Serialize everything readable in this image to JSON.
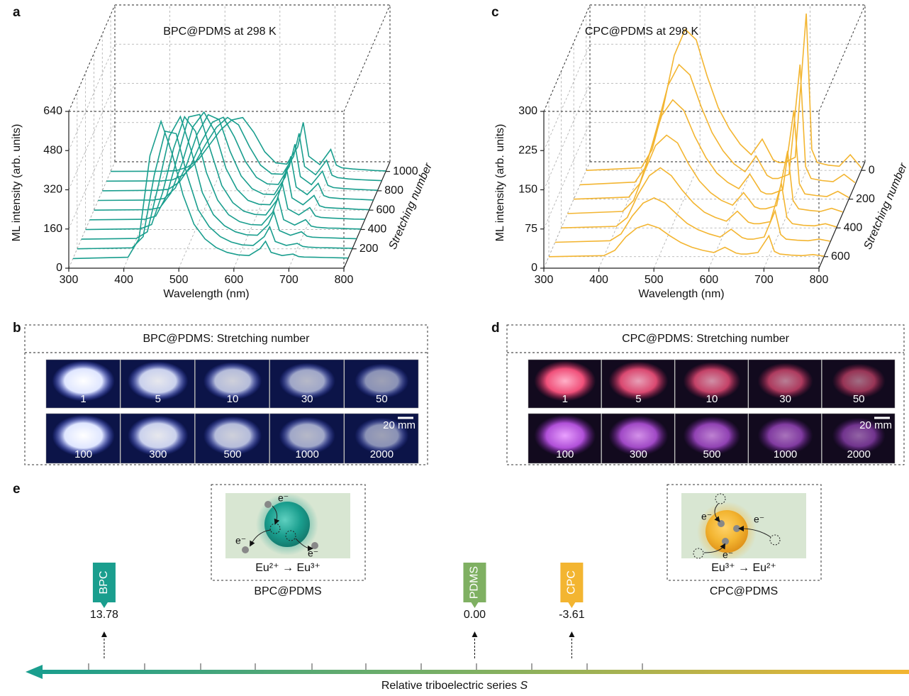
{
  "chart_data": [
    {
      "type": "waterfall",
      "panel_label": "a",
      "title": "BPC@PDMS at 298 K",
      "xlabel": "Wavelength (nm)",
      "ylabel": "ML intensity (arb. units)",
      "zlabel": "Stretching number",
      "color": "#1a9e8e",
      "grid": true,
      "xlim": [
        300,
        800
      ],
      "xticks": [
        300,
        400,
        500,
        600,
        700,
        800
      ],
      "ylim": [
        0,
        640
      ],
      "yticks": [
        0,
        160,
        320,
        480,
        640
      ],
      "zlim": [
        0,
        1100
      ],
      "zticks": [
        200,
        400,
        600,
        800,
        1000
      ],
      "x": [
        300,
        400,
        420,
        440,
        460,
        480,
        500,
        520,
        540,
        560,
        580,
        600,
        620,
        640,
        650,
        660,
        680,
        700,
        710,
        720,
        740,
        760,
        780,
        800
      ],
      "series": [
        {
          "z": 100,
          "values": [
            0,
            5,
            80,
            420,
            560,
            430,
            260,
            140,
            80,
            45,
            25,
            15,
            12,
            40,
            70,
            25,
            12,
            18,
            8,
            6,
            5,
            4,
            3,
            2
          ]
        },
        {
          "z": 200,
          "values": [
            0,
            4,
            50,
            300,
            480,
            470,
            300,
            160,
            90,
            50,
            28,
            16,
            14,
            50,
            90,
            30,
            14,
            22,
            10,
            7,
            5,
            4,
            3,
            2
          ]
        },
        {
          "z": 300,
          "values": [
            0,
            3,
            30,
            220,
            420,
            500,
            360,
            190,
            100,
            55,
            30,
            18,
            16,
            60,
            110,
            35,
            16,
            30,
            12,
            8,
            6,
            5,
            3,
            2
          ]
        },
        {
          "z": 400,
          "values": [
            0,
            3,
            20,
            150,
            330,
            460,
            400,
            230,
            120,
            60,
            32,
            20,
            18,
            70,
            130,
            40,
            18,
            40,
            14,
            9,
            6,
            5,
            3,
            2
          ]
        },
        {
          "z": 500,
          "values": [
            0,
            2,
            15,
            100,
            260,
            420,
            430,
            280,
            140,
            70,
            35,
            22,
            20,
            80,
            150,
            45,
            20,
            50,
            16,
            10,
            7,
            5,
            3,
            2
          ]
        },
        {
          "z": 600,
          "values": [
            0,
            2,
            10,
            70,
            190,
            340,
            400,
            320,
            170,
            85,
            40,
            24,
            22,
            90,
            170,
            50,
            22,
            60,
            18,
            11,
            8,
            6,
            3,
            2
          ]
        },
        {
          "z": 700,
          "values": [
            0,
            2,
            8,
            50,
            140,
            270,
            350,
            330,
            200,
            100,
            48,
            26,
            24,
            95,
            180,
            55,
            24,
            70,
            20,
            12,
            8,
            6,
            4,
            2
          ]
        },
        {
          "z": 800,
          "values": [
            0,
            2,
            6,
            35,
            100,
            200,
            280,
            300,
            220,
            120,
            55,
            28,
            26,
            100,
            190,
            58,
            25,
            80,
            22,
            13,
            9,
            6,
            4,
            2
          ]
        },
        {
          "z": 900,
          "values": [
            0,
            1,
            5,
            25,
            70,
            150,
            220,
            260,
            230,
            140,
            65,
            30,
            28,
            100,
            195,
            60,
            26,
            85,
            24,
            14,
            9,
            6,
            4,
            2
          ]
        },
        {
          "z": 1000,
          "values": [
            0,
            1,
            4,
            18,
            50,
            110,
            170,
            210,
            220,
            160,
            80,
            35,
            30,
            100,
            200,
            62,
            28,
            90,
            26,
            15,
            10,
            7,
            4,
            2
          ]
        }
      ]
    },
    {
      "type": "waterfall",
      "panel_label": "c",
      "title": "CPC@PDMS at 298 K",
      "xlabel": "Wavelength (nm)",
      "ylabel": "ML intensity (arb. units)",
      "zlabel": "Stretching number",
      "color": "#f3b531",
      "grid": true,
      "xlim": [
        300,
        800
      ],
      "xticks": [
        300,
        400,
        500,
        600,
        700,
        800
      ],
      "ylim": [
        0,
        300
      ],
      "yticks": [
        0,
        75,
        150,
        225,
        300
      ],
      "zlim": [
        680,
        -60
      ],
      "zticks": [
        0,
        200,
        400,
        600
      ],
      "x": [
        300,
        400,
        420,
        440,
        460,
        480,
        500,
        520,
        540,
        560,
        580,
        600,
        620,
        640,
        650,
        660,
        680,
        700,
        710,
        720,
        740,
        760,
        780,
        800
      ],
      "series": [
        {
          "z": 600,
          "values": [
            0,
            2,
            12,
            38,
            55,
            62,
            55,
            40,
            27,
            18,
            12,
            8,
            18,
            7,
            5,
            5,
            8,
            40,
            10,
            5,
            3,
            2,
            4,
            1
          ]
        },
        {
          "z": 500,
          "values": [
            0,
            3,
            16,
            50,
            75,
            85,
            75,
            55,
            36,
            24,
            16,
            10,
            25,
            9,
            6,
            6,
            10,
            60,
            15,
            6,
            4,
            3,
            6,
            2
          ]
        },
        {
          "z": 400,
          "values": [
            0,
            3,
            20,
            65,
            100,
            115,
            100,
            72,
            48,
            30,
            20,
            13,
            32,
            11,
            8,
            8,
            12,
            85,
            20,
            8,
            5,
            4,
            8,
            2
          ]
        },
        {
          "z": 300,
          "values": [
            0,
            4,
            25,
            80,
            130,
            150,
            135,
            95,
            62,
            40,
            25,
            16,
            40,
            13,
            9,
            9,
            15,
            120,
            25,
            9,
            6,
            4,
            10,
            3
          ]
        },
        {
          "z": 200,
          "values": [
            0,
            4,
            30,
            95,
            160,
            190,
            170,
            120,
            80,
            50,
            32,
            20,
            48,
            15,
            10,
            10,
            18,
            170,
            30,
            10,
            7,
            5,
            15,
            3
          ]
        },
        {
          "z": 100,
          "values": [
            0,
            5,
            35,
            110,
            190,
            230,
            210,
            150,
            100,
            65,
            40,
            25,
            55,
            18,
            12,
            12,
            20,
            230,
            35,
            12,
            8,
            6,
            20,
            4
          ]
        },
        {
          "z": 0,
          "values": [
            0,
            5,
            40,
            120,
            220,
            270,
            250,
            180,
            120,
            80,
            50,
            30,
            60,
            20,
            15,
            15,
            25,
            300,
            40,
            15,
            10,
            8,
            30,
            5
          ]
        }
      ]
    }
  ],
  "panel_b": {
    "label": "b",
    "header": "BPC@PDMS: Stretching number",
    "photos": [
      [
        "1",
        "5",
        "10",
        "30",
        "50"
      ],
      [
        "100",
        "300",
        "500",
        "1000",
        "2000"
      ]
    ],
    "scale_bar": "20 mm"
  },
  "panel_d": {
    "label": "d",
    "header": "CPC@PDMS: Stretching number",
    "photos": [
      [
        "1",
        "5",
        "10",
        "30",
        "50"
      ],
      [
        "100",
        "300",
        "500",
        "1000",
        "2000"
      ]
    ],
    "scale_bar": "20 mm"
  },
  "panel_e": {
    "label": "e",
    "xlim": [
      16.6,
      -16.1
    ],
    "axis_label": "Relative triboelectric series",
    "axis_symbol": "S",
    "materials": [
      {
        "name": "BPC",
        "value": 13.78,
        "value_label": "13.78",
        "color": "#1a9e8e"
      },
      {
        "name": "PDMS",
        "value": 0,
        "value_label": "0.00",
        "color": "#7fb062"
      },
      {
        "name": "CPC",
        "value": -3.61,
        "value_label": "-3.61",
        "color": "#f3b531"
      }
    ],
    "insets": [
      {
        "caption": "BPC@PDMS",
        "electron": "e⁻",
        "reaction": "Eu²⁺ → Eu³⁺"
      },
      {
        "caption": "CPC@PDMS",
        "electron": "e⁻",
        "reaction": "Eu³⁺ → Eu²⁺"
      }
    ]
  }
}
